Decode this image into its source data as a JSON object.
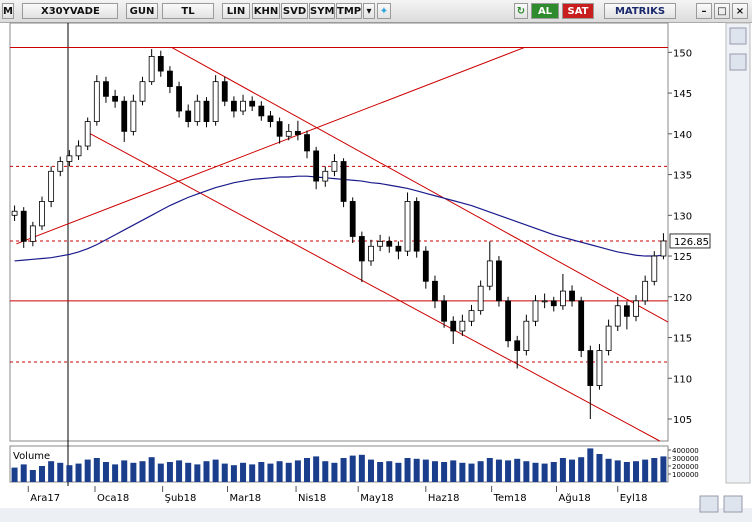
{
  "toolbar": {
    "logo": "M",
    "symbol": "X30YVADE",
    "buttons": [
      "GUN",
      "TL",
      "LIN",
      "KHN",
      "SVD",
      "SYM",
      "TMP"
    ],
    "buy": "AL",
    "sell": "SAT",
    "brand": "MATRIKS"
  },
  "chart_data": {
    "type": "candlestick",
    "ohlc": [
      [
        130.0,
        131.2,
        129.3,
        130.5
      ],
      [
        130.5,
        131.0,
        126.0,
        126.8
      ],
      [
        126.8,
        129.2,
        126.2,
        128.7
      ],
      [
        128.7,
        132.3,
        128.2,
        131.7
      ],
      [
        131.7,
        136.0,
        131.0,
        135.4
      ],
      [
        135.4,
        137.2,
        134.8,
        136.6
      ],
      [
        136.6,
        138.0,
        136.0,
        137.3
      ],
      [
        137.3,
        139.2,
        136.8,
        138.5
      ],
      [
        138.5,
        142.0,
        138.0,
        141.5
      ],
      [
        141.5,
        147.2,
        141.0,
        146.4
      ],
      [
        146.4,
        147.0,
        143.8,
        144.6
      ],
      [
        144.6,
        145.4,
        143.2,
        144.0
      ],
      [
        144.0,
        144.6,
        139.0,
        140.3
      ],
      [
        140.3,
        144.8,
        139.8,
        144.0
      ],
      [
        144.0,
        147.0,
        143.5,
        146.4
      ],
      [
        146.4,
        150.4,
        146.0,
        149.5
      ],
      [
        149.5,
        150.2,
        147.0,
        147.7
      ],
      [
        147.7,
        148.3,
        145.0,
        145.8
      ],
      [
        145.8,
        146.4,
        142.0,
        142.8
      ],
      [
        142.8,
        143.6,
        140.8,
        141.5
      ],
      [
        141.5,
        144.8,
        141.0,
        144.0
      ],
      [
        144.0,
        144.5,
        140.8,
        141.5
      ],
      [
        141.5,
        147.2,
        141.0,
        146.4
      ],
      [
        146.4,
        147.0,
        143.4,
        144.0
      ],
      [
        144.0,
        144.6,
        142.0,
        142.8
      ],
      [
        142.8,
        144.8,
        142.3,
        144.0
      ],
      [
        144.0,
        144.6,
        142.8,
        143.4
      ],
      [
        143.4,
        144.0,
        141.6,
        142.2
      ],
      [
        142.2,
        142.8,
        140.8,
        141.5
      ],
      [
        141.5,
        142.0,
        138.8,
        139.7
      ],
      [
        139.7,
        141.2,
        139.2,
        140.3
      ],
      [
        140.3,
        141.6,
        139.2,
        139.9
      ],
      [
        139.9,
        140.4,
        137.0,
        137.9
      ],
      [
        137.9,
        138.4,
        133.2,
        134.2
      ],
      [
        134.2,
        136.0,
        133.5,
        135.4
      ],
      [
        135.4,
        137.5,
        134.8,
        136.6
      ],
      [
        136.6,
        137.0,
        131.0,
        131.7
      ],
      [
        131.7,
        132.2,
        126.6,
        127.4
      ],
      [
        127.4,
        128.0,
        121.8,
        124.4
      ],
      [
        124.4,
        127.0,
        123.8,
        126.2
      ],
      [
        126.2,
        127.6,
        125.6,
        126.8
      ],
      [
        126.8,
        127.4,
        125.4,
        126.2
      ],
      [
        126.2,
        126.8,
        124.6,
        125.6
      ],
      [
        125.6,
        132.8,
        125.0,
        131.7
      ],
      [
        131.7,
        132.2,
        124.8,
        125.6
      ],
      [
        125.6,
        126.2,
        121.0,
        121.9
      ],
      [
        121.9,
        122.6,
        118.6,
        119.5
      ],
      [
        119.5,
        120.2,
        116.2,
        117.0
      ],
      [
        117.0,
        117.6,
        114.2,
        115.8
      ],
      [
        115.8,
        117.8,
        115.2,
        117.0
      ],
      [
        117.0,
        119.0,
        116.4,
        118.3
      ],
      [
        118.3,
        122.0,
        117.8,
        121.3
      ],
      [
        121.3,
        126.8,
        120.8,
        124.4
      ],
      [
        124.4,
        125.0,
        118.8,
        119.5
      ],
      [
        119.5,
        120.0,
        113.8,
        114.6
      ],
      [
        114.6,
        115.2,
        111.2,
        113.4
      ],
      [
        113.4,
        117.8,
        112.8,
        117.0
      ],
      [
        117.0,
        120.2,
        116.4,
        119.5
      ],
      [
        119.5,
        120.4,
        118.6,
        119.5
      ],
      [
        119.5,
        120.0,
        118.2,
        118.9
      ],
      [
        118.9,
        122.8,
        118.4,
        120.7
      ],
      [
        120.7,
        121.4,
        118.8,
        119.5
      ],
      [
        119.5,
        120.0,
        112.6,
        113.4
      ],
      [
        113.4,
        114.0,
        105.0,
        109.1
      ],
      [
        109.1,
        114.2,
        108.6,
        113.4
      ],
      [
        113.4,
        117.2,
        112.8,
        116.4
      ],
      [
        116.4,
        120.0,
        115.8,
        118.9
      ],
      [
        118.9,
        119.4,
        116.0,
        117.6
      ],
      [
        117.6,
        120.2,
        117.0,
        119.5
      ],
      [
        119.5,
        122.6,
        119.0,
        121.9
      ],
      [
        121.9,
        125.6,
        121.4,
        125.0
      ],
      [
        125.0,
        127.8,
        124.6,
        126.85
      ]
    ],
    "up_color": "#ffffff",
    "down_color": "#000000",
    "moving_average": {
      "color": "#1a1a8c",
      "values": [
        124.4,
        124.5,
        124.6,
        124.7,
        124.8,
        125.0,
        125.2,
        125.5,
        125.9,
        126.4,
        127.0,
        127.6,
        128.2,
        128.8,
        129.4,
        130.0,
        130.6,
        131.2,
        131.7,
        132.2,
        132.6,
        133.0,
        133.4,
        133.7,
        134.0,
        134.2,
        134.4,
        134.5,
        134.6,
        134.7,
        134.7,
        134.8,
        134.8,
        134.7,
        134.6,
        134.5,
        134.4,
        134.3,
        134.2,
        134.0,
        133.9,
        133.7,
        133.5,
        133.3,
        133.0,
        132.7,
        132.4,
        132.1,
        131.8,
        131.5,
        131.2,
        130.8,
        130.4,
        130.0,
        129.6,
        129.2,
        128.8,
        128.4,
        128.0,
        127.6,
        127.3,
        127.0,
        126.7,
        126.4,
        126.1,
        125.8,
        125.5,
        125.3,
        125.1,
        125.0,
        125.0,
        125.1
      ]
    },
    "levels": [
      {
        "value": 150.6,
        "dashed": false
      },
      {
        "value": 136.0,
        "dashed": true
      },
      {
        "value": 126.85,
        "dashed": true
      },
      {
        "value": 119.5,
        "dashed": false
      },
      {
        "value": 112.0,
        "dashed": true
      }
    ],
    "trend_lines": [
      {
        "x": [
          17.2,
          71.5
        ],
        "y": [
          150.6,
          116.9
        ]
      },
      {
        "x": [
          8.3,
          70.6
        ],
        "y": [
          140.0,
          102.3
        ]
      },
      {
        "x": [
          0.2,
          55.8
        ],
        "y": [
          126.5,
          150.6
        ]
      }
    ],
    "line_color": "#cc0000",
    "xlim": [
      -0.5,
      71.5
    ],
    "xticks": [
      {
        "value": 1.5,
        "label": "Ara17"
      },
      {
        "value": 8.8,
        "label": "Oca18"
      },
      {
        "value": 16.2,
        "label": "Şub18"
      },
      {
        "value": 23.3,
        "label": "Mar18"
      },
      {
        "value": 30.8,
        "label": "Nis18"
      },
      {
        "value": 37.6,
        "label": "May18"
      },
      {
        "value": 45.0,
        "label": "Haz18"
      },
      {
        "value": 52.2,
        "label": "Tem18"
      },
      {
        "value": 59.3,
        "label": "Ağu18"
      },
      {
        "value": 66.0,
        "label": "Eyl18"
      }
    ],
    "ylim": [
      102.3,
      153.6
    ],
    "yticks": [
      105,
      110,
      115,
      120,
      125,
      130,
      135,
      140,
      145,
      150
    ],
    "volume": {
      "label": "Volume",
      "color": "#1a3d8c",
      "ylim": [
        0,
        450000
      ],
      "yticks": [
        100000,
        200000,
        300000,
        400000
      ],
      "values": [
        180000,
        220000,
        150000,
        200000,
        260000,
        240000,
        210000,
        230000,
        280000,
        300000,
        250000,
        220000,
        270000,
        240000,
        260000,
        310000,
        230000,
        250000,
        270000,
        240000,
        220000,
        260000,
        280000,
        230000,
        210000,
        240000,
        220000,
        250000,
        230000,
        260000,
        240000,
        270000,
        300000,
        320000,
        260000,
        240000,
        300000,
        330000,
        340000,
        280000,
        250000,
        260000,
        240000,
        300000,
        290000,
        280000,
        260000,
        250000,
        270000,
        240000,
        230000,
        260000,
        300000,
        280000,
        270000,
        290000,
        260000,
        240000,
        230000,
        250000,
        300000,
        280000,
        310000,
        420000,
        350000,
        290000,
        270000,
        250000,
        260000,
        280000,
        300000,
        320000
      ]
    }
  }
}
